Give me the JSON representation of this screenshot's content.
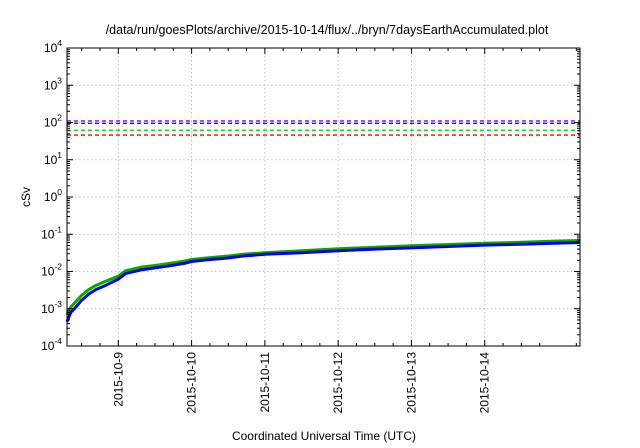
{
  "chart_data": {
    "type": "line",
    "title": "/data/run/goesPlots/archive/2015-10-14/flux/../bryn/7daysEarthAccumulated.plot",
    "xlabel": "Coordinated Universal Time (UTC)",
    "ylabel": "cSv",
    "yscale": "log",
    "ylim_exp": [
      -4,
      4
    ],
    "y_tick_base": "10",
    "y_tick_exponents": [
      "-4",
      "-3",
      "-2",
      "-1",
      "0",
      "1",
      "2",
      "3",
      "4"
    ],
    "xlim_days": [
      -0.7,
      6.3
    ],
    "x_ticks": [
      {
        "label": "2015-10-9",
        "day": 0
      },
      {
        "label": "2015-10-10",
        "day": 1
      },
      {
        "label": "2015-10-11",
        "day": 2
      },
      {
        "label": "2015-10-12",
        "day": 3
      },
      {
        "label": "2015-10-13",
        "day": 4
      },
      {
        "label": "2015-10-14",
        "day": 5
      }
    ],
    "grid": true,
    "thresholds": [
      {
        "color": "#9400d3",
        "value": 110
      },
      {
        "color": "#1a1aff",
        "value": 95
      },
      {
        "color": "#00cc00",
        "value": 62
      },
      {
        "color": "#ff0000",
        "value": 46
      }
    ],
    "series": [
      {
        "color": "#00b000",
        "x": [
          -0.7,
          -0.65,
          -0.6,
          -0.5,
          -0.4,
          -0.3,
          -0.2,
          -0.1,
          0.0,
          0.1,
          0.3,
          0.5,
          0.7,
          0.9,
          1.0,
          1.2,
          1.5,
          1.7,
          2.0,
          2.5,
          3.0,
          3.5,
          4.0,
          4.5,
          5.0,
          5.5,
          6.0,
          6.3
        ],
        "y": [
          0.0007,
          0.0011,
          0.0014,
          0.0023,
          0.0033,
          0.0043,
          0.0052,
          0.0063,
          0.0075,
          0.0105,
          0.013,
          0.0145,
          0.0165,
          0.019,
          0.021,
          0.023,
          0.026,
          0.029,
          0.032,
          0.036,
          0.041,
          0.045,
          0.049,
          0.053,
          0.057,
          0.061,
          0.066,
          0.068
        ]
      },
      {
        "color": "#0000dd",
        "x": [
          -0.7,
          -0.65,
          -0.6,
          -0.5,
          -0.4,
          -0.3,
          -0.2,
          -0.1,
          0.0,
          0.1,
          0.3,
          0.5,
          0.7,
          0.9,
          1.0,
          1.2,
          1.5,
          1.7,
          2.0,
          2.5,
          3.0,
          3.5,
          4.0,
          4.5,
          5.0,
          5.5,
          6.0,
          6.3
        ],
        "y": [
          0.00045,
          0.0008,
          0.001,
          0.0017,
          0.0025,
          0.0033,
          0.004,
          0.005,
          0.0062,
          0.0088,
          0.011,
          0.0125,
          0.0142,
          0.0165,
          0.0185,
          0.0205,
          0.023,
          0.026,
          0.029,
          0.032,
          0.036,
          0.04,
          0.043,
          0.047,
          0.051,
          0.054,
          0.058,
          0.06
        ]
      }
    ]
  }
}
